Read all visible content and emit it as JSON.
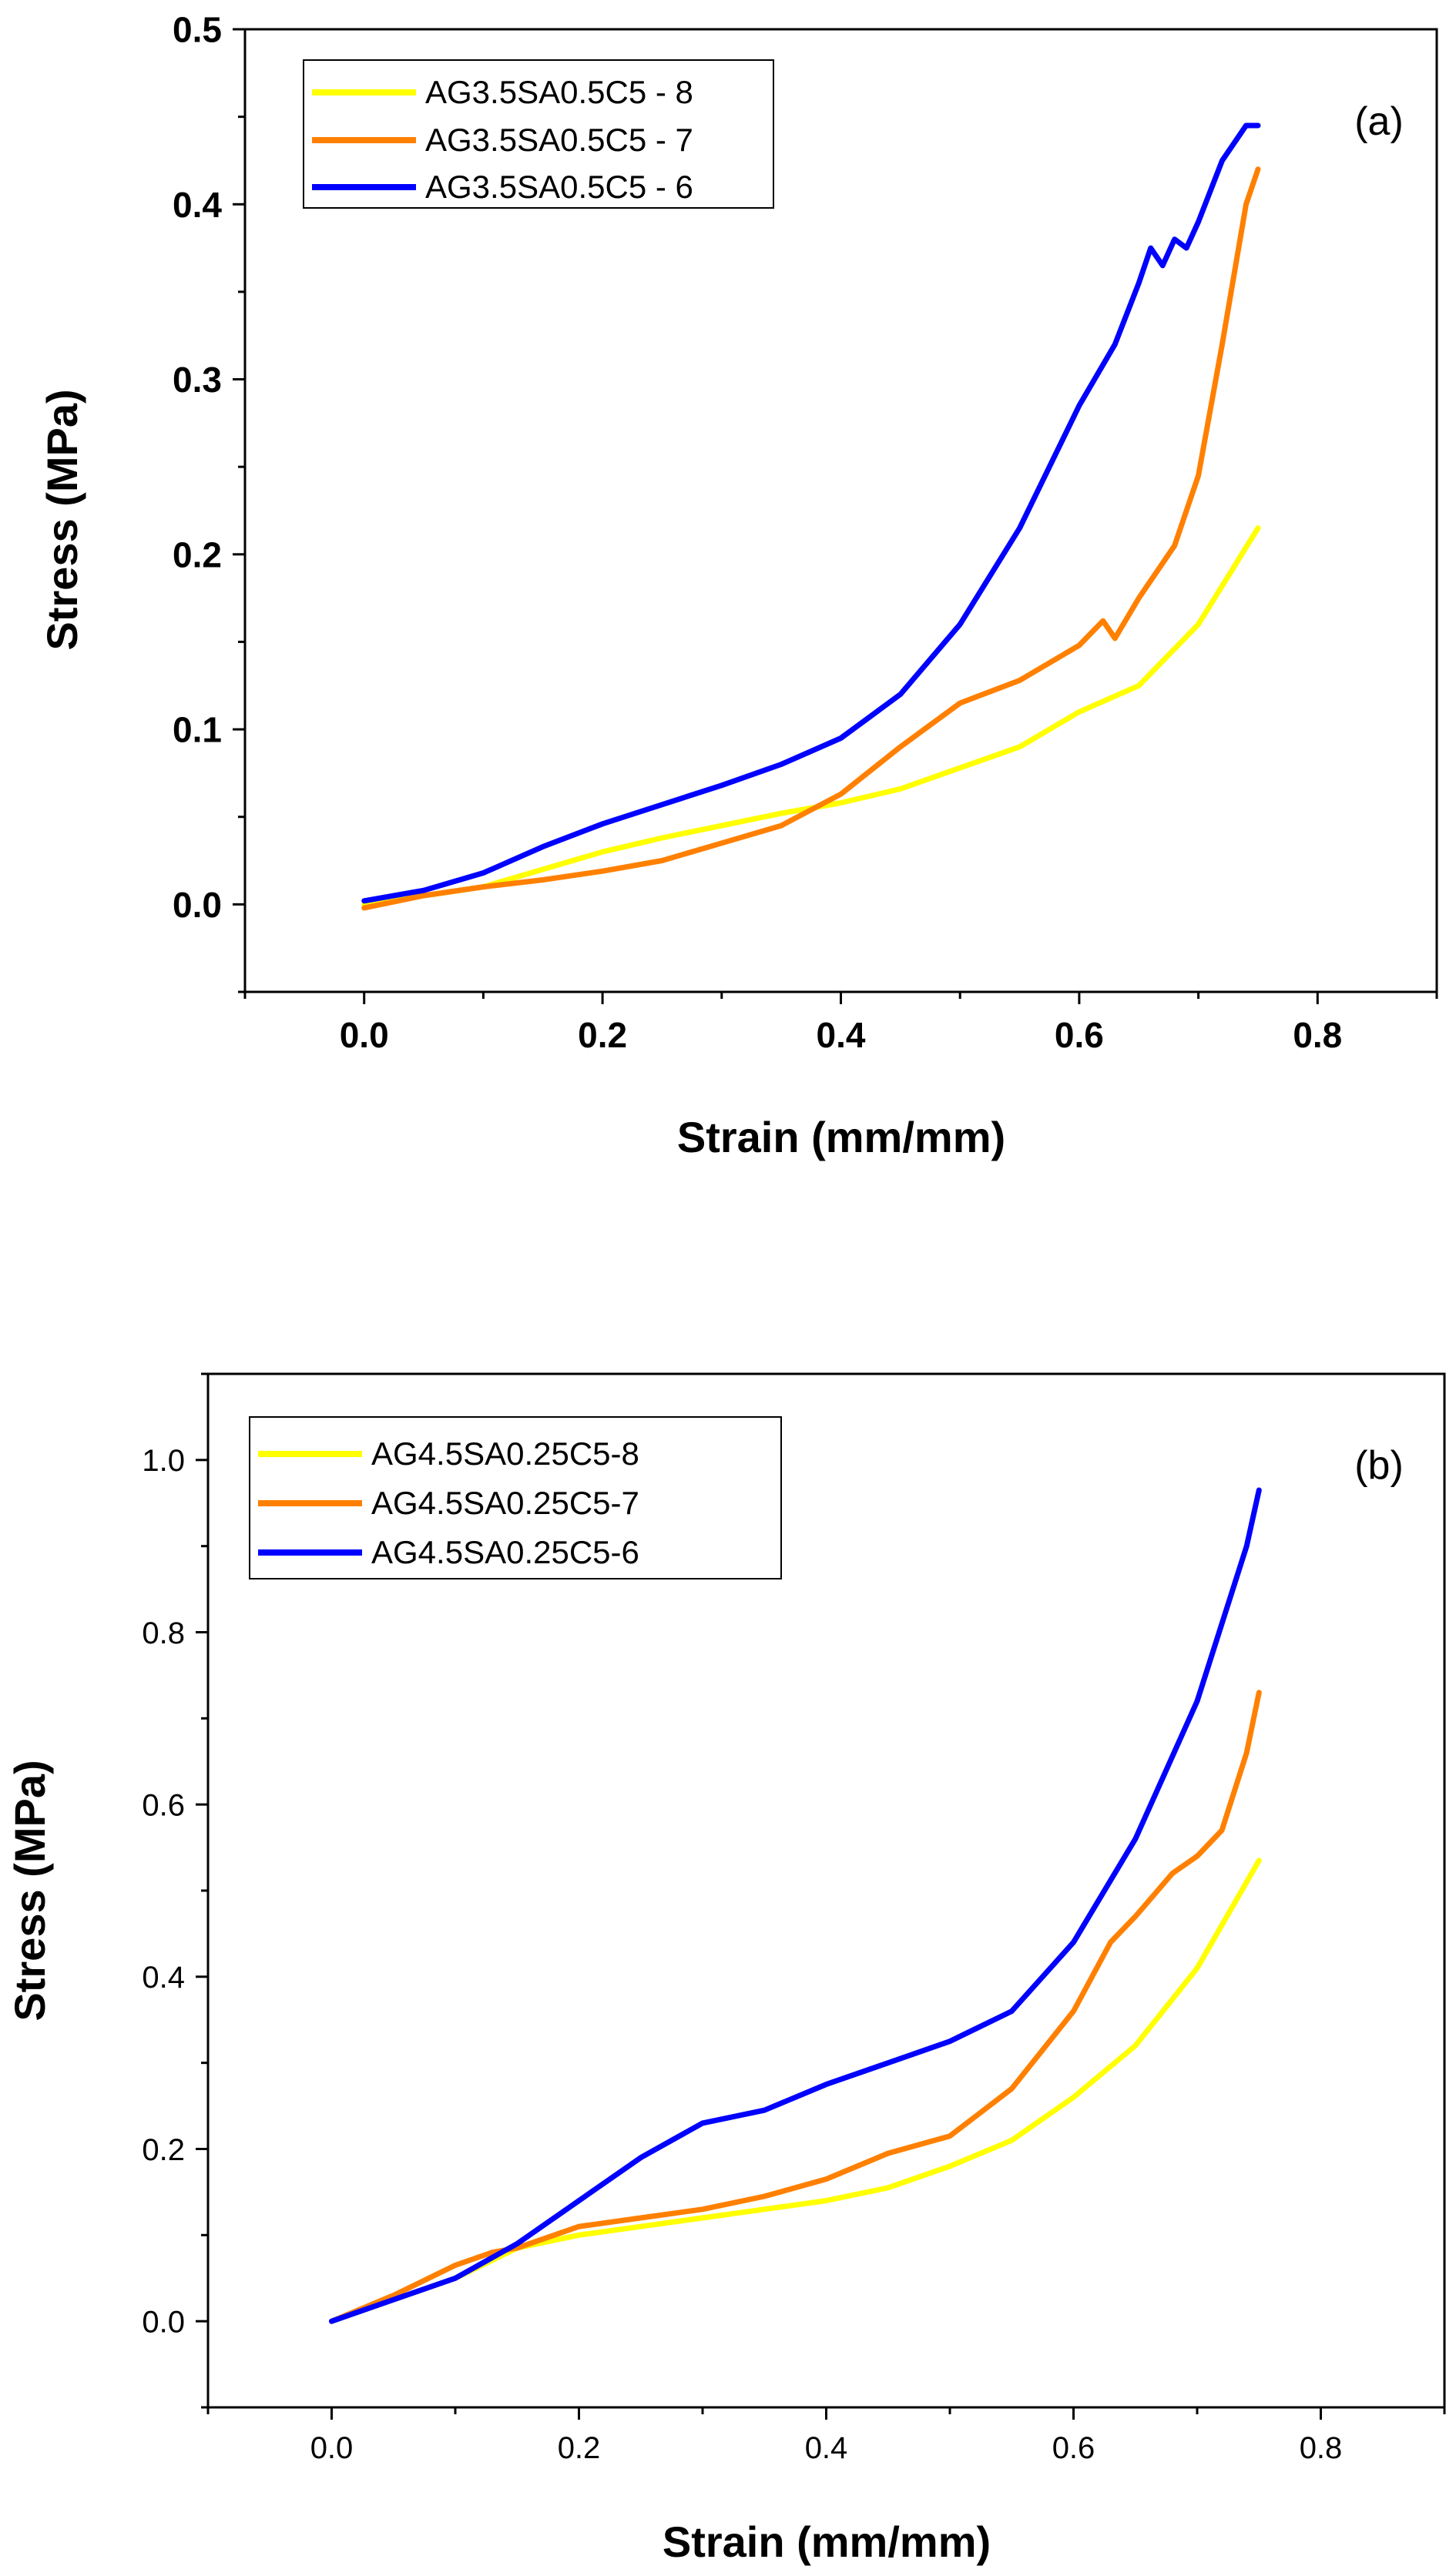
{
  "chart_data": [
    {
      "type": "line",
      "panel_label": "(a)",
      "xlabel": "Strain (mm/mm)",
      "ylabel": "Stress (MPa)",
      "xlim": [
        -0.1,
        0.9
      ],
      "ylim": [
        -0.05,
        0.5
      ],
      "x_ticks": [
        "0.0",
        "0.2",
        "0.4",
        "0.6",
        "0.8"
      ],
      "x_tick_values": [
        0.0,
        0.2,
        0.4,
        0.6,
        0.8
      ],
      "y_ticks": [
        "0.0",
        "0.1",
        "0.2",
        "0.3",
        "0.4",
        "0.5"
      ],
      "y_tick_values": [
        0.0,
        0.1,
        0.2,
        0.3,
        0.4,
        0.5
      ],
      "legend_position": "top-left",
      "series": [
        {
          "name": "AG3.5SA0.5C5 - 8",
          "color": "#ffff00",
          "x": [
            0.0,
            0.05,
            0.1,
            0.15,
            0.2,
            0.25,
            0.3,
            0.35,
            0.4,
            0.45,
            0.5,
            0.55,
            0.6,
            0.65,
            0.7,
            0.75
          ],
          "y": [
            0.0,
            0.005,
            0.01,
            0.02,
            0.03,
            0.038,
            0.045,
            0.052,
            0.058,
            0.066,
            0.078,
            0.09,
            0.11,
            0.125,
            0.16,
            0.215
          ]
        },
        {
          "name": "AG3.5SA0.5C5 - 7",
          "color": "#ff8000",
          "x": [
            0.0,
            0.05,
            0.1,
            0.15,
            0.2,
            0.25,
            0.3,
            0.35,
            0.4,
            0.45,
            0.5,
            0.55,
            0.6,
            0.62,
            0.63,
            0.65,
            0.68,
            0.7,
            0.72,
            0.74,
            0.75
          ],
          "y": [
            -0.002,
            0.005,
            0.01,
            0.014,
            0.019,
            0.025,
            0.035,
            0.045,
            0.063,
            0.09,
            0.115,
            0.128,
            0.148,
            0.162,
            0.152,
            0.175,
            0.205,
            0.245,
            0.32,
            0.4,
            0.42
          ]
        },
        {
          "name": "AG3.5SA0.5C5 - 6",
          "color": "#0000ff",
          "x": [
            0.0,
            0.05,
            0.1,
            0.15,
            0.2,
            0.25,
            0.3,
            0.35,
            0.4,
            0.45,
            0.5,
            0.55,
            0.6,
            0.63,
            0.65,
            0.66,
            0.67,
            0.68,
            0.69,
            0.7,
            0.72,
            0.74,
            0.75
          ],
          "y": [
            0.002,
            0.008,
            0.018,
            0.033,
            0.046,
            0.057,
            0.068,
            0.08,
            0.095,
            0.12,
            0.16,
            0.215,
            0.285,
            0.32,
            0.355,
            0.375,
            0.365,
            0.38,
            0.375,
            0.39,
            0.425,
            0.445,
            0.445
          ]
        }
      ]
    },
    {
      "type": "line",
      "panel_label": "(b)",
      "xlabel": "Strain (mm/mm)",
      "ylabel": "Stress (MPa)",
      "xlim": [
        -0.1,
        0.9
      ],
      "ylim": [
        -0.1,
        1.1
      ],
      "x_ticks": [
        "0.0",
        "0.2",
        "0.4",
        "0.6",
        "0.8"
      ],
      "x_tick_values": [
        0.0,
        0.2,
        0.4,
        0.6,
        0.8
      ],
      "y_ticks": [
        "0.0",
        "0.2",
        "0.4",
        "0.6",
        "0.8",
        "1.0"
      ],
      "y_tick_values": [
        0.0,
        0.2,
        0.4,
        0.6,
        0.8,
        1.0
      ],
      "legend_position": "top-left",
      "series": [
        {
          "name": "AG4.5SA0.25C5-8",
          "color": "#ffff00",
          "x": [
            0.0,
            0.05,
            0.1,
            0.15,
            0.2,
            0.25,
            0.3,
            0.35,
            0.4,
            0.45,
            0.5,
            0.55,
            0.6,
            0.65,
            0.7,
            0.75
          ],
          "y": [
            0.0,
            0.025,
            0.05,
            0.085,
            0.1,
            0.11,
            0.12,
            0.13,
            0.14,
            0.155,
            0.18,
            0.21,
            0.26,
            0.32,
            0.41,
            0.535
          ]
        },
        {
          "name": "AG4.5SA0.25C5-7",
          "color": "#ff8000",
          "x": [
            0.0,
            0.05,
            0.1,
            0.13,
            0.15,
            0.2,
            0.25,
            0.3,
            0.35,
            0.4,
            0.45,
            0.5,
            0.55,
            0.6,
            0.63,
            0.65,
            0.68,
            0.7,
            0.72,
            0.74,
            0.75
          ],
          "y": [
            0.0,
            0.03,
            0.065,
            0.08,
            0.085,
            0.11,
            0.12,
            0.13,
            0.145,
            0.165,
            0.195,
            0.215,
            0.27,
            0.36,
            0.44,
            0.47,
            0.52,
            0.54,
            0.57,
            0.66,
            0.73
          ]
        },
        {
          "name": "AG4.5SA0.25C5-6",
          "color": "#0000ff",
          "x": [
            0.0,
            0.05,
            0.1,
            0.15,
            0.2,
            0.25,
            0.3,
            0.35,
            0.4,
            0.45,
            0.5,
            0.55,
            0.6,
            0.65,
            0.7,
            0.74,
            0.75
          ],
          "y": [
            0.0,
            0.025,
            0.05,
            0.09,
            0.14,
            0.19,
            0.23,
            0.245,
            0.275,
            0.3,
            0.325,
            0.36,
            0.44,
            0.56,
            0.72,
            0.9,
            0.965
          ]
        }
      ]
    }
  ]
}
